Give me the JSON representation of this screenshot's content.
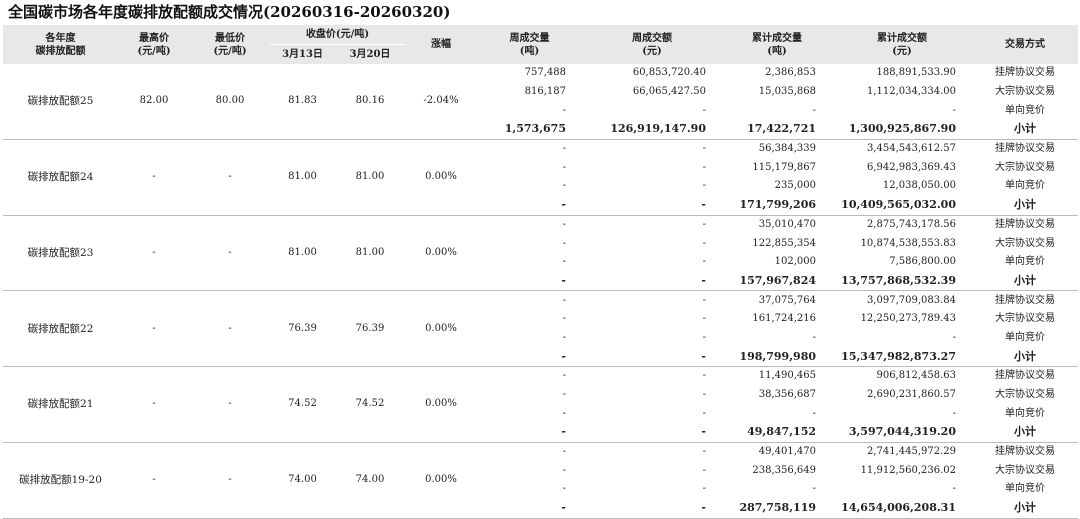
{
  "title": "全国碳市场各年度碳排放配额成交情况(20260316-20260320)",
  "headers": {
    "category": [
      "各年度",
      "碳排放配额"
    ],
    "high_price": [
      "最高价",
      "(元/吨)"
    ],
    "low_price": [
      "最低价",
      "(元/吨)"
    ],
    "close_price": "收盘价(元/吨)",
    "close_date1": "3月13日",
    "close_date2": "3月20日",
    "change": "涨幅",
    "weekly_volume": [
      "周成交量",
      "(吨)"
    ],
    "weekly_amount": [
      "周成交额",
      "(元)"
    ],
    "cum_volume": [
      "累计成交量",
      "(吨)"
    ],
    "cum_amount": [
      "累计成交额",
      "(元)"
    ],
    "method": "交易方式"
  },
  "groups": [
    {
      "name": "碳排放配额25",
      "high": "82.00",
      "low": "80.00",
      "close1": "81.83",
      "close2": "80.16",
      "change": "-2.04%",
      "rows": [
        {
          "wv": "757,488",
          "wa": "60,853,720.40",
          "cv": "2,386,853",
          "ca": "188,891,533.90",
          "method": "挂牌协议交易"
        },
        {
          "wv": "816,187",
          "wa": "66,065,427.50",
          "cv": "15,035,868",
          "ca": "1,112,034,334.00",
          "method": "大宗协议交易"
        },
        {
          "wv": "-",
          "wa": "-",
          "cv": "-",
          "ca": "-",
          "method": "单向竞价"
        },
        {
          "wv": "1,573,675",
          "wa": "126,919,147.90",
          "cv": "17,422,721",
          "ca": "1,300,925,867.90",
          "method": "小计"
        }
      ]
    },
    {
      "name": "碳排放配额24",
      "high": "-",
      "low": "-",
      "close1": "81.00",
      "close2": "81.00",
      "change": "0.00%",
      "rows": [
        {
          "wv": "-",
          "wa": "-",
          "cv": "56,384,339",
          "ca": "3,454,543,612.57",
          "method": "挂牌协议交易"
        },
        {
          "wv": "-",
          "wa": "-",
          "cv": "115,179,867",
          "ca": "6,942,983,369.43",
          "method": "大宗协议交易"
        },
        {
          "wv": "-",
          "wa": "-",
          "cv": "235,000",
          "ca": "12,038,050.00",
          "method": "单向竞价"
        },
        {
          "wv": "-",
          "wa": "-",
          "cv": "171,799,206",
          "ca": "10,409,565,032.00",
          "method": "小计"
        }
      ]
    },
    {
      "name": "碳排放配额23",
      "high": "-",
      "low": "-",
      "close1": "81.00",
      "close2": "81.00",
      "change": "0.00%",
      "rows": [
        {
          "wv": "-",
          "wa": "-",
          "cv": "35,010,470",
          "ca": "2,875,743,178.56",
          "method": "挂牌协议交易"
        },
        {
          "wv": "-",
          "wa": "-",
          "cv": "122,855,354",
          "ca": "10,874,538,553.83",
          "method": "大宗协议交易"
        },
        {
          "wv": "-",
          "wa": "-",
          "cv": "102,000",
          "ca": "7,586,800.00",
          "method": "单向竞价"
        },
        {
          "wv": "-",
          "wa": "-",
          "cv": "157,967,824",
          "ca": "13,757,868,532.39",
          "method": "小计"
        }
      ]
    },
    {
      "name": "碳排放配额22",
      "high": "-",
      "low": "-",
      "close1": "76.39",
      "close2": "76.39",
      "change": "0.00%",
      "rows": [
        {
          "wv": "-",
          "wa": "-",
          "cv": "37,075,764",
          "ca": "3,097,709,083.84",
          "method": "挂牌协议交易"
        },
        {
          "wv": "-",
          "wa": "-",
          "cv": "161,724,216",
          "ca": "12,250,273,789.43",
          "method": "大宗协议交易"
        },
        {
          "wv": "-",
          "wa": "-",
          "cv": "-",
          "ca": "-",
          "method": "单向竞价"
        },
        {
          "wv": "-",
          "wa": "-",
          "cv": "198,799,980",
          "ca": "15,347,982,873.27",
          "method": "小计"
        }
      ]
    },
    {
      "name": "碳排放配额21",
      "high": "-",
      "low": "-",
      "close1": "74.52",
      "close2": "74.52",
      "change": "0.00%",
      "rows": [
        {
          "wv": "-",
          "wa": "-",
          "cv": "11,490,465",
          "ca": "906,812,458.63",
          "method": "挂牌协议交易"
        },
        {
          "wv": "-",
          "wa": "-",
          "cv": "38,356,687",
          "ca": "2,690,231,860.57",
          "method": "大宗协议交易"
        },
        {
          "wv": "-",
          "wa": "-",
          "cv": "-",
          "ca": "-",
          "method": "单向竞价"
        },
        {
          "wv": "-",
          "wa": "-",
          "cv": "49,847,152",
          "ca": "3,597,044,319.20",
          "method": "小计"
        }
      ]
    },
    {
      "name": "碳排放配额19-20",
      "high": "-",
      "low": "-",
      "close1": "74.00",
      "close2": "74.00",
      "change": "0.00%",
      "rows": [
        {
          "wv": "-",
          "wa": "-",
          "cv": "49,401,470",
          "ca": "2,741,445,972.29",
          "method": "挂牌协议交易"
        },
        {
          "wv": "-",
          "wa": "-",
          "cv": "238,356,649",
          "ca": "11,912,560,236.02",
          "method": "大宗协议交易"
        },
        {
          "wv": "-",
          "wa": "-",
          "cv": "-",
          "ca": "-",
          "method": "单向竞价"
        },
        {
          "wv": "-",
          "wa": "-",
          "cv": "287,758,119",
          "ca": "14,654,006,208.31",
          "method": "小计"
        }
      ]
    }
  ]
}
